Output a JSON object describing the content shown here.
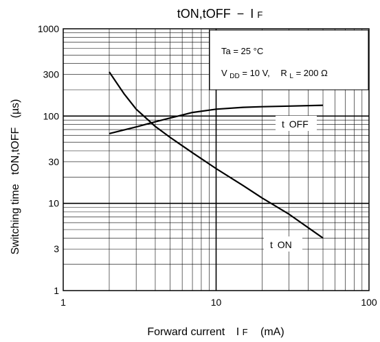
{
  "chart_data": {
    "type": "line",
    "title": {
      "main": "tON,tOFF",
      "dash": "−",
      "symbol": "I",
      "sub": "F"
    },
    "xlabel": {
      "main": "Forward current",
      "symbol": "I",
      "sub": "F",
      "unit": "(mA)"
    },
    "ylabel": "Switching time   tON,tOFF   (µs)",
    "x_scale": "log",
    "y_scale": "log",
    "xlim": [
      1,
      100
    ],
    "ylim": [
      1,
      1000
    ],
    "x_ticks": [
      {
        "value": 1,
        "label": "1"
      },
      {
        "value": 10,
        "label": "10"
      },
      {
        "value": 100,
        "label": "100"
      }
    ],
    "y_ticks": [
      {
        "value": 1,
        "label": "1"
      },
      {
        "value": 3,
        "label": "3"
      },
      {
        "value": 10,
        "label": "10"
      },
      {
        "value": 30,
        "label": "30"
      },
      {
        "value": 100,
        "label": "100"
      },
      {
        "value": 300,
        "label": "300"
      },
      {
        "value": 1000,
        "label": "1000"
      }
    ],
    "grid": true,
    "conditions": {
      "line1": "Ta = 25 °C",
      "line2": {
        "vdd_main": "V",
        "vdd_sub": "DD",
        "vdd_value": " = 10 V,",
        "rl_main": "R",
        "rl_sub": "L",
        "rl_value": " = 200 Ω"
      }
    },
    "series": [
      {
        "name": "t OFF",
        "label": {
          "main": "t",
          "sub": "OFF"
        },
        "points": [
          [
            2,
            63
          ],
          [
            3,
            75
          ],
          [
            4,
            86
          ],
          [
            5,
            95
          ],
          [
            7,
            110
          ],
          [
            10,
            120
          ],
          [
            15,
            126
          ],
          [
            20,
            128
          ],
          [
            30,
            130
          ],
          [
            50,
            133
          ]
        ]
      },
      {
        "name": "t ON",
        "label": {
          "main": "t",
          "sub": "ON"
        },
        "points": [
          [
            2,
            320
          ],
          [
            2.5,
            180
          ],
          [
            3,
            120
          ],
          [
            4,
            76
          ],
          [
            5,
            57
          ],
          [
            7,
            38
          ],
          [
            10,
            25
          ],
          [
            15,
            16
          ],
          [
            20,
            11.5
          ],
          [
            30,
            7.5
          ],
          [
            50,
            4
          ]
        ]
      }
    ]
  }
}
